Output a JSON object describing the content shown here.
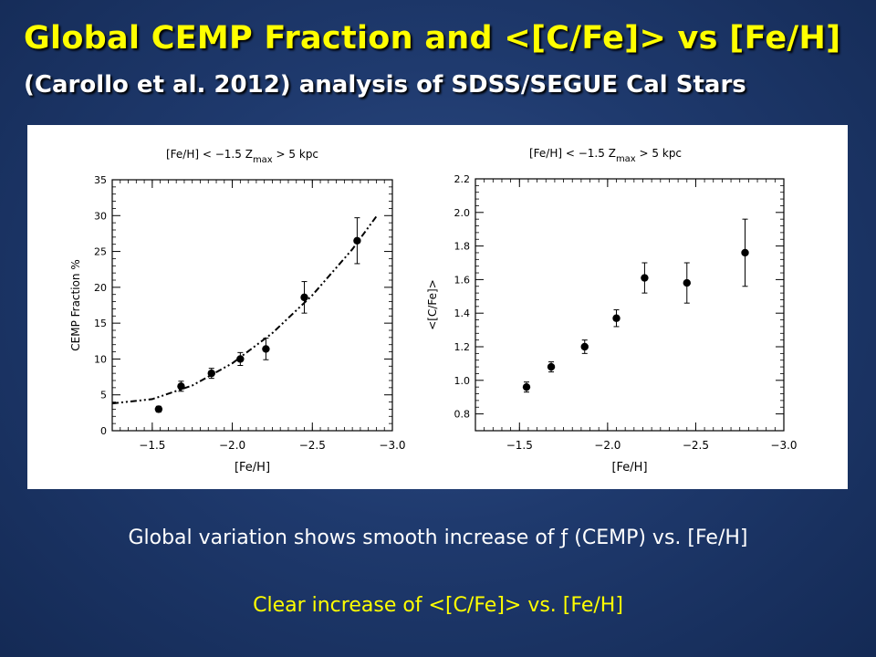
{
  "slide": {
    "title": "Global CEMP Fraction and <[C/Fe]> vs [Fe/H]",
    "subtitle": "(Carollo et al. 2012) analysis of SDSS/SEGUE Cal Stars",
    "caption_1": "Global variation shows smooth increase of  ƒ (CEMP) vs. [Fe/H]",
    "caption_2": "Clear increase of <[C/Fe]> vs. [Fe/H]"
  },
  "chart_data": [
    {
      "type": "scatter",
      "title_parts": [
        "[Fe/H] < −1.5",
        "Z",
        "max",
        "> 5 kpc"
      ],
      "xlabel": "[Fe/H]",
      "ylabel": "CEMP Fraction %",
      "xlim": [
        -1.25,
        -3.0
      ],
      "ylim": [
        0,
        35
      ],
      "xticks": [
        -1.5,
        -2.0,
        -2.5,
        -3.0
      ],
      "xtick_labels": [
        "−1.5",
        "−2.0",
        "−2.5",
        "−3.0"
      ],
      "yticks": [
        0,
        5,
        10,
        15,
        20,
        25,
        30,
        35
      ],
      "ytick_labels": [
        "0",
        "5",
        "10",
        "15",
        "20",
        "25",
        "30",
        "35"
      ],
      "series": [
        {
          "x": [
            -1.54,
            -1.68,
            -1.87,
            -2.05,
            -2.21,
            -2.45,
            -2.78
          ],
          "y": [
            3.0,
            6.2,
            8.0,
            10.0,
            11.4,
            18.6,
            26.5
          ],
          "yerr": [
            0.4,
            0.7,
            0.7,
            0.9,
            1.5,
            2.2,
            3.2
          ]
        }
      ],
      "fit_curve": {
        "style": "dash-dot",
        "x": [
          -1.25,
          -1.5,
          -1.75,
          -2.0,
          -2.25,
          -2.5,
          -2.75,
          -2.9
        ],
        "y": [
          3.8,
          4.4,
          6.3,
          9.4,
          13.6,
          18.9,
          25.3,
          29.9
        ]
      }
    },
    {
      "type": "scatter",
      "title_parts": [
        "[Fe/H] < −1.5",
        "Z",
        "max",
        "> 5 kpc"
      ],
      "xlabel": "[Fe/H]",
      "ylabel": "<[C/Fe]>",
      "xlim": [
        -1.25,
        -3.0
      ],
      "ylim": [
        0.7,
        2.2
      ],
      "xticks": [
        -1.5,
        -2.0,
        -2.5,
        -3.0
      ],
      "xtick_labels": [
        "−1.5",
        "−2.0",
        "−2.5",
        "−3.0"
      ],
      "yticks": [
        0.8,
        1.0,
        1.2,
        1.4,
        1.6,
        1.8,
        2.0,
        2.2
      ],
      "ytick_labels": [
        "0.8",
        "1.0",
        "1.2",
        "1.4",
        "1.6",
        "1.8",
        "2.0",
        "2.2"
      ],
      "series": [
        {
          "x": [
            -1.54,
            -1.68,
            -1.87,
            -2.05,
            -2.21,
            -2.45,
            -2.78
          ],
          "y": [
            0.96,
            1.08,
            1.2,
            1.37,
            1.61,
            1.58,
            1.76
          ],
          "yerr": [
            0.03,
            0.03,
            0.04,
            0.05,
            0.09,
            0.12,
            0.2
          ]
        }
      ]
    }
  ]
}
